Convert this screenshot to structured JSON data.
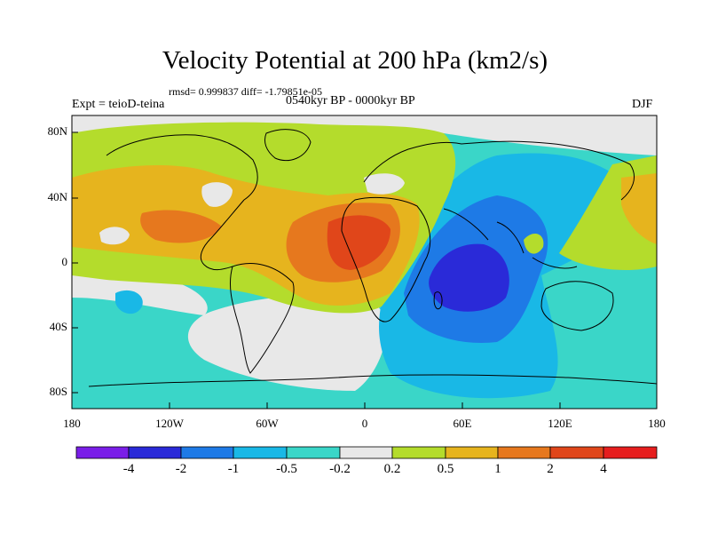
{
  "title": "Velocity Potential at 200 hPa (km2/s)",
  "stats": "rmsd= 0.999837 diff= -1.79851e-05",
  "experiment": "Expt = teioD-teina",
  "period": "0540kyr BP - 0000kyr BP",
  "season": "DJF",
  "lat_labels": [
    "80N",
    "40N",
    "0",
    "40S",
    "80S"
  ],
  "lon_labels": [
    "180",
    "120W",
    "60W",
    "0",
    "60E",
    "120E",
    "180"
  ],
  "colorbar": {
    "labels": [
      "-4",
      "-2",
      "-1",
      "-0.5",
      "-0.2",
      "0.2",
      "0.5",
      "1",
      "2",
      "4"
    ],
    "colors": [
      "#7a1ee8",
      "#2a2ad8",
      "#1e7ae6",
      "#19b8e6",
      "#3ad6c8",
      "#e8e8e8",
      "#b4dc2c",
      "#e6b41e",
      "#e6781e",
      "#e0461a",
      "#e61e1e"
    ]
  }
}
